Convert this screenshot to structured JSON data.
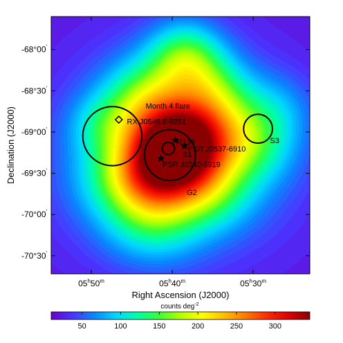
{
  "chart_data": {
    "type": "heatmap",
    "title": "",
    "xlabel": "Right Ascension (J2000)",
    "ylabel": "Declination (J2000)",
    "x_ticks": [
      {
        "h": "05",
        "m": "50",
        "value_deg": 87.5
      },
      {
        "h": "05",
        "m": "40",
        "value_deg": 85.0
      },
      {
        "h": "05",
        "m": "30",
        "value_deg": 82.5
      }
    ],
    "y_ticks": [
      {
        "d": "-68",
        "m": "00",
        "value_deg": -68.0
      },
      {
        "d": "-68",
        "m": "30",
        "value_deg": -68.5
      },
      {
        "d": "-69",
        "m": "00",
        "value_deg": -69.0
      },
      {
        "d": "-69",
        "m": "30",
        "value_deg": -69.5
      },
      {
        "d": "-70",
        "m": "00",
        "value_deg": -70.0
      },
      {
        "d": "-70",
        "m": "30",
        "value_deg": -70.5
      }
    ],
    "xlim_deg": [
      88.74,
      80.75
    ],
    "ylim_deg": [
      -70.72,
      -67.6
    ],
    "colorbar": {
      "label_text": "counts deg",
      "label_exp": "-2",
      "ticks": [
        50,
        100,
        150,
        200,
        250,
        300
      ],
      "range": [
        10,
        345
      ],
      "colors": [
        "#6a00cf",
        "#4a35ff",
        "#0a86ff",
        "#00d6ff",
        "#00ffa8",
        "#37ff37",
        "#b4ff00",
        "#ffff00",
        "#ffbf00",
        "#ff7a00",
        "#ff2b00",
        "#e00000",
        "#8a0000"
      ]
    },
    "components": [
      {
        "ra": 84.95,
        "dec": -69.22,
        "amp": 200,
        "sigma": 0.34
      },
      {
        "ra": 84.35,
        "dec": -69.0,
        "amp": 100,
        "sigma": 0.36
      },
      {
        "ra": 85.35,
        "dec": -69.6,
        "amp": 70,
        "sigma": 0.32
      },
      {
        "ra": 84.6,
        "dec": -68.1,
        "amp": 105,
        "sigma": 0.3
      },
      {
        "ra": 85.9,
        "dec": -68.6,
        "amp": 75,
        "sigma": 0.32
      },
      {
        "ra": 83.7,
        "dec": -68.5,
        "amp": 55,
        "sigma": 0.3
      },
      {
        "ra": 82.6,
        "dec": -69.12,
        "amp": 70,
        "sigma": 0.34
      },
      {
        "ra": 86.4,
        "dec": -69.55,
        "amp": 65,
        "sigma": 0.35
      },
      {
        "ra": 85.6,
        "dec": -70.1,
        "amp": 60,
        "sigma": 0.35
      },
      {
        "ra": 83.8,
        "dec": -69.75,
        "amp": 50,
        "sigma": 0.3
      },
      {
        "ra": 84.9,
        "dec": -69.2,
        "amp": 110,
        "sigma": 0.75
      },
      {
        "ra": 87.2,
        "dec": -68.9,
        "amp": 40,
        "sigma": 0.25
      },
      {
        "ra": 81.7,
        "dec": -68.7,
        "amp": 30,
        "sigma": 0.3
      }
    ],
    "background": 22,
    "circles": [
      {
        "id": "month4-flare",
        "ra": 86.85,
        "dec": -69.05,
        "r_arcmin": 21.5
      },
      {
        "id": "G2",
        "ra": 85.07,
        "dec": -69.28,
        "r_arcmin": 18.5
      },
      {
        "id": "S1",
        "ra": 85.12,
        "dec": -69.2,
        "r_arcmin": 4.5
      },
      {
        "id": "S3",
        "ra": 82.35,
        "dec": -68.96,
        "r_arcmin": 10.5
      }
    ],
    "diamond": {
      "ra": 86.65,
      "dec": -68.85
    },
    "stars": [
      {
        "id": "R136",
        "ra": 84.9,
        "dec": -69.1
      },
      {
        "id": "PSR J0537-6910",
        "ra": 84.62,
        "dec": -69.17
      },
      {
        "id": "PSR J0540-6919",
        "ra": 85.35,
        "dec": -69.32
      }
    ],
    "annotations": [
      {
        "text": "Month 4 flare",
        "ra": 85.82,
        "dec": -68.68
      },
      {
        "text": "RX J0546.8-6851",
        "ra": 86.4,
        "dec": -68.87
      },
      {
        "text": "R136",
        "ra": 84.85,
        "dec": -69.12
      },
      {
        "text": "PSR J0537-6910",
        "ra": 84.52,
        "dec": -69.2
      },
      {
        "text": "S1",
        "ra": 84.68,
        "dec": -69.27
      },
      {
        "text": "PSR J0540-6919",
        "ra": 85.3,
        "dec": -69.39
      },
      {
        "text": "G2",
        "ra": 84.55,
        "dec": -69.73
      },
      {
        "text": "S3",
        "ra": 81.98,
        "dec": -69.1
      }
    ]
  }
}
